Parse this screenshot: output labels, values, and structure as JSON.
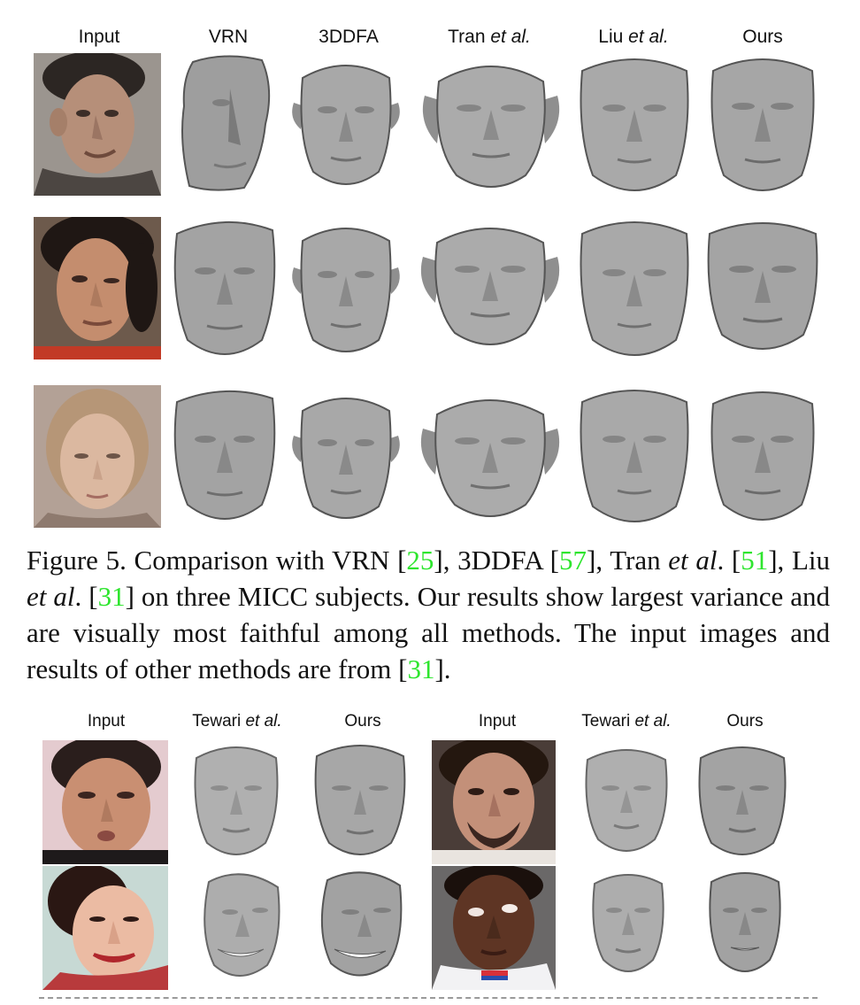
{
  "figure5": {
    "headers": {
      "input": "Input",
      "vrn": "VRN",
      "ddfa": "3DDFA",
      "tran_name": "Tran ",
      "tran_etal": "et al.",
      "liu_name": "Liu ",
      "liu_etal": "et al.",
      "ours": "Ours"
    },
    "caption": {
      "t1": "Figure 5. Comparison with VRN [",
      "c1": "25",
      "t2": "], 3DDFA [",
      "c2": "57",
      "t3": "], Tran ",
      "i1": "et al",
      "t4": ". [",
      "c3": "51",
      "t5": "], Liu ",
      "i2": "et al",
      "t6": ". [",
      "c4": "31",
      "t7": "] on three MICC subjects. Our results show largest variance and are visually most faithful among all methods. The input images and results of other methods are from [",
      "c5": "31",
      "t8": "]."
    }
  },
  "figure6": {
    "left_headers": {
      "input": "Input",
      "tewari_name": "Tewari ",
      "tewari_etal": "et al.",
      "ours": "Ours"
    },
    "right_headers": {
      "input": "Input",
      "tewari_name": "Tewari ",
      "tewari_etal": "et al.",
      "ours": "Ours"
    }
  },
  "colors": {
    "citation": "#2ee52e",
    "mesh_light": "#d4d4d4",
    "mesh_dark": "#5e5e5e"
  }
}
